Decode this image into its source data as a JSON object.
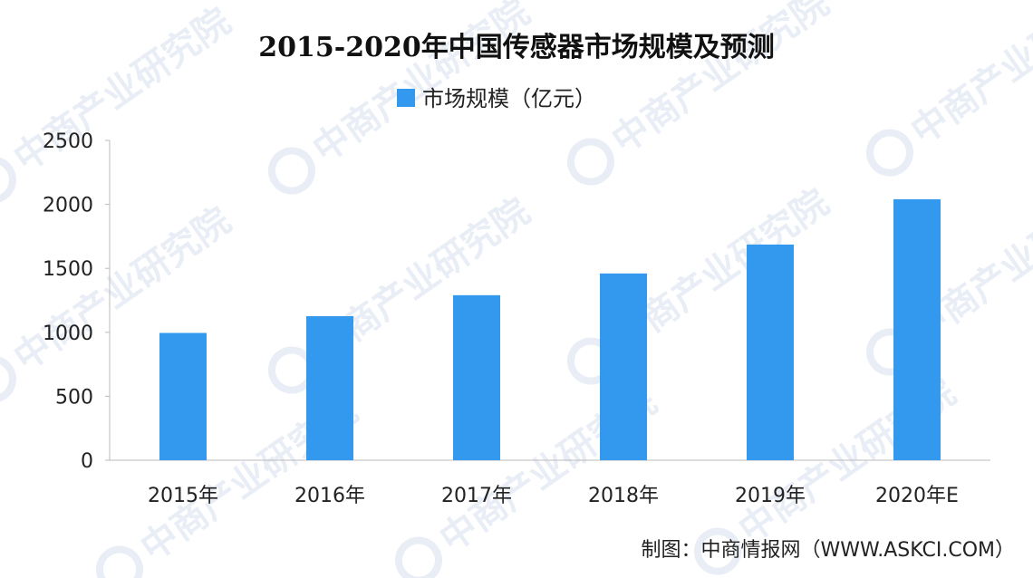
{
  "chart_data": {
    "type": "bar",
    "title": "2015-2020年中国传感器市场规模及预测",
    "categories": [
      "2015年",
      "2016年",
      "2017年",
      "2018年",
      "2019年",
      "2020年E"
    ],
    "series": [
      {
        "name": "市场规模（亿元）",
        "values": [
          995,
          1126,
          1290,
          1460,
          1686,
          2040
        ],
        "color": "#3399ee"
      }
    ],
    "xlabel": "",
    "ylabel": "",
    "ylim": [
      0,
      2500
    ],
    "yticks": [
      0,
      500,
      1000,
      1500,
      2000,
      2500
    ],
    "ytick_labels": [
      "0",
      "500",
      "1000",
      "1500",
      "2000",
      "2500"
    ],
    "grid": false,
    "legend": "top-center"
  },
  "watermark": {
    "text": "中商产业研究院",
    "logo": "zhongshang-logo-icon",
    "color": "#e9eef6"
  },
  "source": "制图：中商情报网（WWW.ASKCI.COM）"
}
